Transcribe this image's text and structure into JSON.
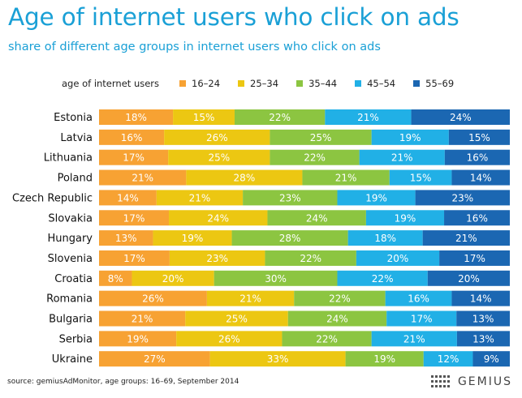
{
  "title": "Age of internet users who click on ads",
  "subtitle": "share of different age groups in internet users who click on ads",
  "source": "source: gemiusAdMonitor, age groups: 16–69, September 2014",
  "logo_text": "GEMIUS",
  "chart_data": {
    "type": "bar",
    "orientation": "horizontal",
    "stacked": true,
    "normalized": true,
    "legend_title": "age of internet users",
    "legend_position": "top",
    "value_suffix": "%",
    "categories": [
      "Estonia",
      "Latvia",
      "Lithuania",
      "Poland",
      "Czech Republic",
      "Slovakia",
      "Hungary",
      "Slovenia",
      "Croatia",
      "Romania",
      "Bulgaria",
      "Serbia",
      "Ukraine"
    ],
    "series": [
      {
        "name": "16–24",
        "color": "#f7a233",
        "values": [
          18,
          16,
          17,
          21,
          14,
          17,
          13,
          17,
          8,
          26,
          21,
          19,
          27
        ]
      },
      {
        "name": "25–34",
        "color": "#ecc712",
        "values": [
          15,
          26,
          25,
          28,
          21,
          24,
          19,
          23,
          20,
          21,
          25,
          26,
          33
        ]
      },
      {
        "name": "35–44",
        "color": "#8cc541",
        "values": [
          22,
          25,
          22,
          21,
          23,
          24,
          28,
          22,
          30,
          22,
          24,
          22,
          19
        ]
      },
      {
        "name": "45–54",
        "color": "#21b0e6",
        "values": [
          21,
          19,
          21,
          15,
          19,
          19,
          18,
          20,
          22,
          16,
          17,
          21,
          12
        ]
      },
      {
        "name": "55–69",
        "color": "#1b67b2",
        "values": [
          24,
          15,
          16,
          14,
          23,
          16,
          21,
          17,
          20,
          14,
          13,
          13,
          9
        ]
      }
    ]
  }
}
